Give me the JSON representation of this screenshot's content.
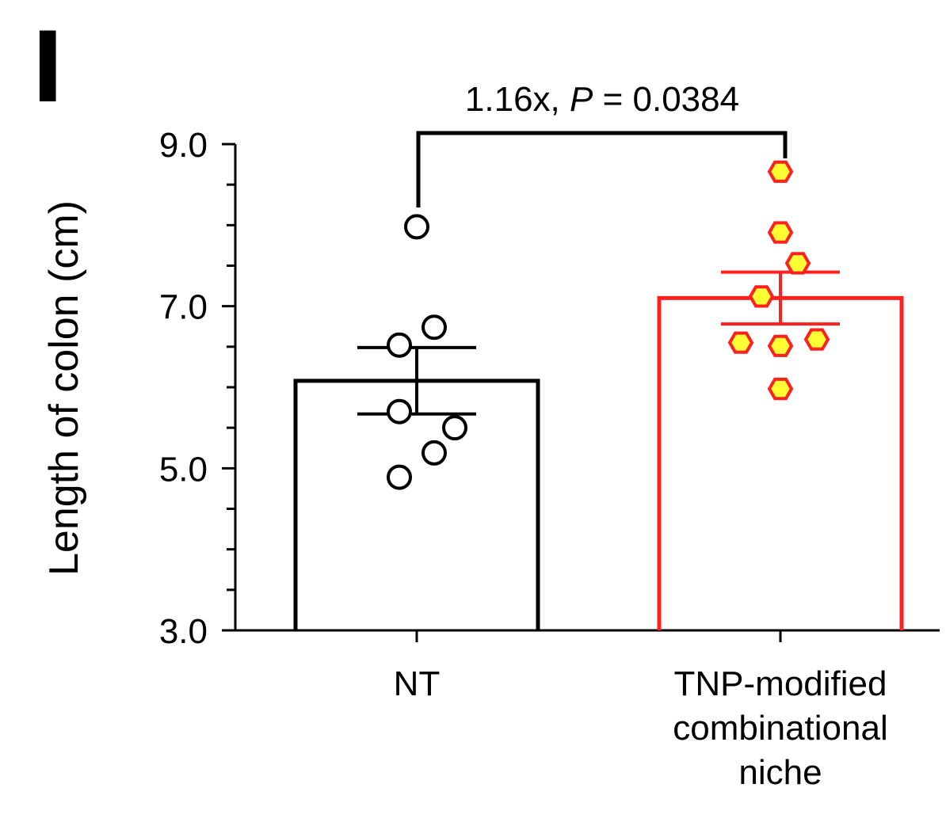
{
  "panel_label": "l",
  "chart_data": {
    "type": "bar",
    "ylabel": "Length of colon (cm)",
    "ylim": [
      3.0,
      9.0
    ],
    "yticks": [
      "3.0",
      "5.0",
      "7.0",
      "9.0"
    ],
    "minor_tick_step": 0.5,
    "categories": [
      "NT",
      "TNP-modified combinational niche"
    ],
    "category_label_lines": [
      [
        "NT"
      ],
      [
        "TNP-modified",
        "combinational",
        "niche"
      ]
    ],
    "bars": [
      {
        "category": "NT",
        "mean": 6.08,
        "sem_low": 5.67,
        "sem_high": 6.49,
        "color": "#000000",
        "marker": "open-circle",
        "points": [
          7.98,
          6.74,
          6.52,
          5.7,
          5.5,
          5.19,
          4.89
        ]
      },
      {
        "category": "TNP-modified combinational niche",
        "mean": 7.1,
        "sem_low": 6.78,
        "sem_high": 7.42,
        "color": "#ff2020",
        "marker_fill": "#ffff33",
        "marker": "hexagon",
        "points": [
          8.66,
          7.91,
          7.53,
          7.12,
          6.59,
          6.55,
          6.51,
          5.98
        ]
      }
    ],
    "annotation": {
      "prefix": "1.16x, ",
      "p_symbol": "P",
      "suffix": " = 0.0384",
      "text": "1.16x, P = 0.0384"
    },
    "grid": false,
    "legend": "none"
  }
}
